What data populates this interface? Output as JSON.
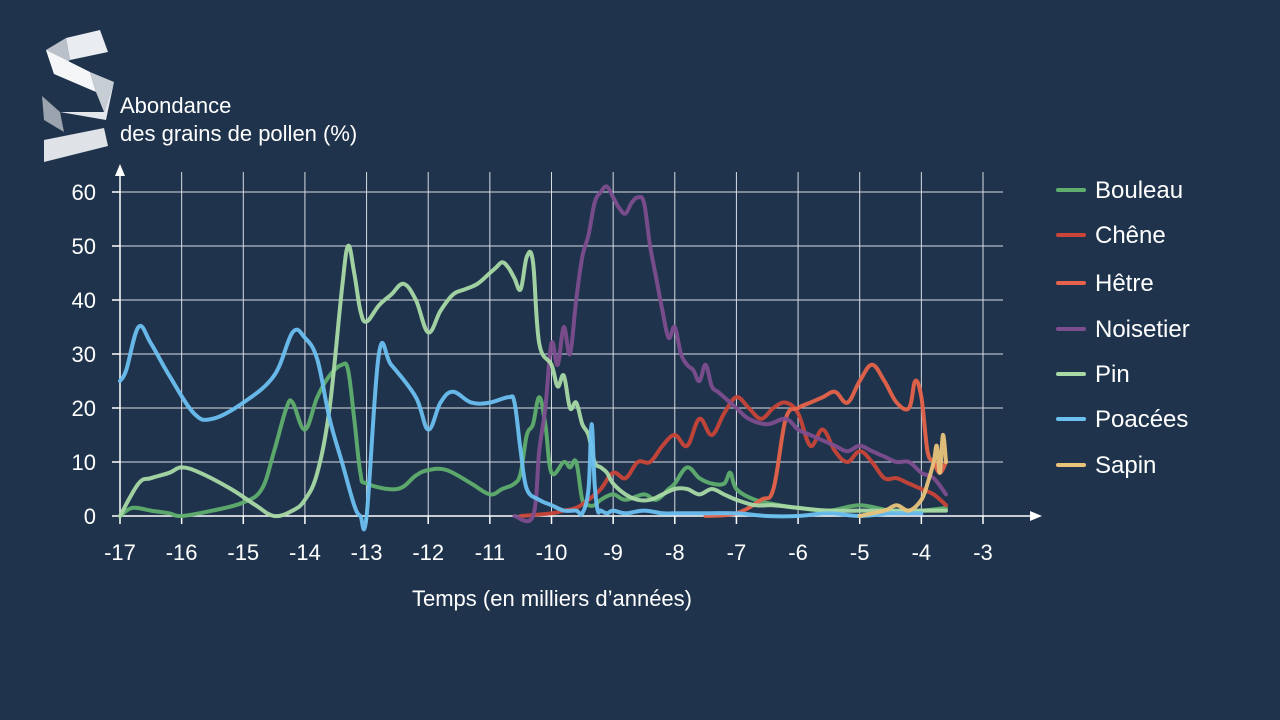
{
  "colors": {
    "background": "#1f344c",
    "grid": "#d8dde4",
    "axis": "#ffffff",
    "text": "#ffffff"
  },
  "logo": {
    "icon": "ribbon-s-logo-icon"
  },
  "chart_data": {
    "type": "line",
    "title": "",
    "ylabel_lines": [
      "Abondance",
      "des grains de pollen (%)"
    ],
    "xlabel": "Temps (en milliers d’années)",
    "xlim": [
      -17,
      -3
    ],
    "ylim": [
      0,
      60
    ],
    "xticks": [
      -17,
      -16,
      -15,
      -14,
      -13,
      -12,
      -11,
      -10,
      -9,
      -8,
      -7,
      -6,
      -5,
      -4,
      -3
    ],
    "xtick_labels": [
      "-17",
      "-16",
      "-15",
      "-14",
      "-13",
      "-12",
      "-11",
      "-10",
      "-9",
      "-8",
      "-7",
      "-6",
      "-5",
      "-4",
      "-3"
    ],
    "yticks": [
      0,
      10,
      20,
      30,
      40,
      50,
      60
    ],
    "ytick_labels": [
      "0",
      "10",
      "20",
      "30",
      "40",
      "50",
      "60"
    ],
    "grid": true,
    "legend_position": "right",
    "series": [
      {
        "name": "Bouleau",
        "color": "#5fae6e",
        "x": [
          -17,
          -16.8,
          -16.5,
          -16.2,
          -16,
          -15.5,
          -15,
          -14.7,
          -14.5,
          -14.3,
          -14.2,
          -14,
          -13.8,
          -13.6,
          -13.4,
          -13.3,
          -13.2,
          -13.1,
          -13,
          -12.5,
          -12.2,
          -12,
          -11.7,
          -11.3,
          -11,
          -10.8,
          -10.6,
          -10.5,
          -10.4,
          -10.3,
          -10.2,
          -10.1,
          -10,
          -9.8,
          -9.7,
          -9.6,
          -9.5,
          -9.4,
          -9.3,
          -9.2,
          -9,
          -8.8,
          -8.5,
          -8.3,
          -8.1,
          -8,
          -7.8,
          -7.6,
          -7.4,
          -7.2,
          -7.1,
          -7,
          -6.7,
          -6.3,
          -6,
          -5.5,
          -5,
          -4.5,
          -4,
          -3.6
        ],
        "y": [
          0,
          1.5,
          1,
          0.5,
          0,
          1,
          2.5,
          5,
          12,
          20,
          21,
          16,
          22,
          26,
          28,
          27,
          18,
          8,
          6,
          5,
          7.5,
          8.5,
          8.5,
          6,
          4,
          5,
          6,
          8,
          15,
          17,
          22,
          17,
          8,
          10,
          9,
          10,
          3,
          2,
          2,
          3,
          4,
          3,
          4,
          3,
          5,
          6,
          9,
          7,
          6,
          6,
          8,
          5,
          3,
          2,
          1.5,
          1,
          2,
          1,
          1,
          1.5
        ]
      },
      {
        "name": "Chêne",
        "color": "#c94538",
        "x": [
          -10.5,
          -10,
          -9.8,
          -9.6,
          -9.4,
          -9.2,
          -9,
          -8.8,
          -8.6,
          -8.4,
          -8.2,
          -8,
          -7.8,
          -7.6,
          -7.4,
          -7.2,
          -7,
          -6.8,
          -6.6,
          -6.4,
          -6.2,
          -6,
          -5.8,
          -5.6,
          -5.4,
          -5.2,
          -5,
          -4.8,
          -4.6,
          -4.4,
          -4.2,
          -4,
          -3.8,
          -3.6
        ],
        "y": [
          0,
          0.5,
          1,
          1.5,
          3,
          5,
          8,
          7,
          10,
          10,
          13,
          15,
          13,
          18,
          15,
          19,
          22,
          20,
          18,
          20,
          21,
          19,
          13,
          16,
          12,
          10,
          12,
          10,
          7,
          7,
          6,
          5,
          4,
          2
        ]
      },
      {
        "name": "Hêtre",
        "color": "#e5634a",
        "x": [
          -7.5,
          -7,
          -6.6,
          -6.4,
          -6.2,
          -6,
          -5.8,
          -5.6,
          -5.4,
          -5.2,
          -5,
          -4.8,
          -4.6,
          -4.4,
          -4.2,
          -4.1,
          -4,
          -3.9,
          -3.8,
          -3.7,
          -3.6
        ],
        "y": [
          0,
          0.5,
          3,
          5,
          18,
          20,
          21,
          22,
          23,
          21,
          25,
          28,
          25,
          21,
          20,
          25,
          22,
          12,
          10,
          8,
          10
        ]
      },
      {
        "name": "Noisetier",
        "color": "#7d4e8e",
        "x": [
          -10.6,
          -10.3,
          -10.2,
          -10.1,
          -10,
          -9.9,
          -9.8,
          -9.7,
          -9.6,
          -9.5,
          -9.4,
          -9.3,
          -9.2,
          -9.1,
          -9,
          -8.9,
          -8.8,
          -8.7,
          -8.6,
          -8.5,
          -8.4,
          -8.3,
          -8.2,
          -8.1,
          -8,
          -7.9,
          -7.8,
          -7.7,
          -7.6,
          -7.5,
          -7.4,
          -7.3,
          -7.2,
          -7.1,
          -7,
          -6.8,
          -6.5,
          -6.2,
          -6,
          -5.8,
          -5.6,
          -5.4,
          -5.2,
          -5,
          -4.8,
          -4.6,
          -4.4,
          -4.2,
          -4,
          -3.8,
          -3.6
        ],
        "y": [
          0,
          0,
          12,
          20,
          32,
          28,
          35,
          30,
          40,
          48,
          52,
          58,
          60,
          61,
          59,
          57,
          56,
          58,
          59,
          58,
          50,
          44,
          38,
          33,
          35,
          30,
          28,
          27,
          25,
          28,
          24,
          23,
          22,
          21,
          20,
          18,
          17,
          18,
          16,
          15,
          14,
          13,
          12,
          13,
          12,
          11,
          10,
          10,
          8,
          7,
          4
        ]
      },
      {
        "name": "Pin",
        "color": "#a9d9a5",
        "x": [
          -17,
          -16.7,
          -16.5,
          -16.2,
          -16,
          -15.7,
          -15.2,
          -14.8,
          -14.5,
          -14.2,
          -14,
          -13.8,
          -13.6,
          -13.4,
          -13.3,
          -13.2,
          -13.1,
          -13,
          -12.8,
          -12.6,
          -12.4,
          -12.2,
          -12,
          -11.8,
          -11.6,
          -11.4,
          -11.2,
          -11,
          -10.9,
          -10.8,
          -10.7,
          -10.6,
          -10.5,
          -10.4,
          -10.3,
          -10.2,
          -10,
          -9.9,
          -9.8,
          -9.7,
          -9.6,
          -9.5,
          -9.4,
          -9.3,
          -9.2,
          -9.1,
          -9,
          -8.8,
          -8.6,
          -8.4,
          -8.2,
          -8,
          -7.8,
          -7.6,
          -7.4,
          -7.2,
          -7,
          -6.7,
          -6.4,
          -6,
          -5.5,
          -5,
          -4.5,
          -4,
          -3.6
        ],
        "y": [
          0,
          6,
          7,
          8,
          9,
          8,
          5,
          2,
          0,
          1,
          3,
          8,
          20,
          42,
          50,
          45,
          38,
          36,
          39,
          41,
          43,
          40,
          34,
          38,
          41,
          42,
          43,
          45,
          46,
          47,
          46,
          44,
          42,
          48,
          47,
          32,
          28,
          24,
          26,
          20,
          21,
          17,
          15,
          10,
          9,
          8,
          6,
          4,
          3,
          3,
          4,
          5,
          5,
          4,
          5,
          4,
          3,
          2,
          2,
          1.5,
          1,
          1,
          1,
          1,
          1
        ]
      },
      {
        "name": "Poacées",
        "color": "#6cc0f0",
        "x": [
          -17,
          -16.9,
          -16.7,
          -16.5,
          -16.2,
          -15.8,
          -15.5,
          -15,
          -14.5,
          -14.2,
          -14,
          -13.8,
          -13.6,
          -13.4,
          -13.2,
          -13.1,
          -13,
          -12.8,
          -12.6,
          -12.2,
          -12,
          -11.8,
          -11.6,
          -11.3,
          -11,
          -10.7,
          -10.6,
          -10.5,
          -10.4,
          -10.2,
          -10,
          -9.8,
          -9.6,
          -9.5,
          -9.4,
          -9.35,
          -9.3,
          -9.25,
          -9.2,
          -9.1,
          -9,
          -8.8,
          -8.5,
          -8.2,
          -8,
          -7.5,
          -7,
          -6.5,
          -6,
          -5.5,
          -5,
          -4.5,
          -4
        ],
        "y": [
          25,
          27,
          35,
          32,
          26,
          19,
          18,
          21,
          26,
          34,
          33,
          29,
          18,
          10,
          2,
          0,
          0,
          30,
          28,
          22,
          16,
          21,
          23,
          21,
          21,
          22,
          21,
          12,
          5,
          3,
          2,
          1,
          1,
          0.5,
          5,
          17,
          6,
          1,
          1,
          0.5,
          1,
          0.5,
          1,
          0.5,
          0.5,
          0.5,
          0.5,
          0,
          0,
          0.5,
          0,
          0.5,
          0.5
        ]
      },
      {
        "name": "Sapin",
        "color": "#e8c37a",
        "x": [
          -5,
          -4.6,
          -4.4,
          -4.2,
          -4,
          -3.9,
          -3.8,
          -3.75,
          -3.7,
          -3.65,
          -3.6
        ],
        "y": [
          0,
          1,
          2,
          1,
          3,
          6,
          10,
          13,
          8,
          15,
          10
        ]
      }
    ]
  }
}
